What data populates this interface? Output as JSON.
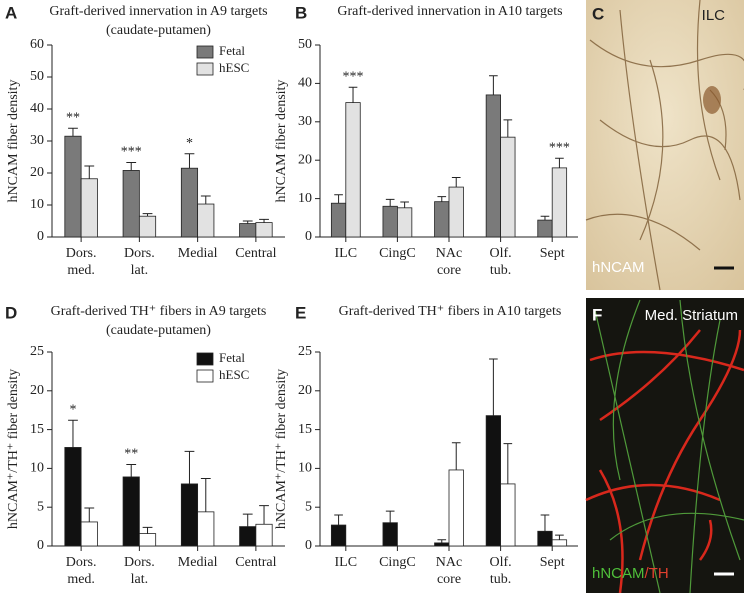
{
  "chart_data": [
    {
      "type": "bar",
      "panel": "A",
      "title": "Graft-derived innervation in A9 targets",
      "subtitle": "(caudate-putamen)",
      "y_label": "hNCAM fiber density",
      "categories": [
        "Dors.\nmed.",
        "Dors.\nlat.",
        "Medial",
        "Central"
      ],
      "series": [
        {
          "name": "Fetal",
          "color": "#7a7a7a",
          "values": [
            31.5,
            20.8,
            21.5,
            4.2
          ],
          "errors": [
            2.5,
            2.5,
            4.5,
            0.8
          ]
        },
        {
          "name": "hESC",
          "color": "#e2e2e2",
          "values": [
            18.2,
            6.5,
            10.3,
            4.5
          ],
          "errors": [
            4,
            0.8,
            2.5,
            1
          ]
        }
      ],
      "significance": [
        "**",
        "***",
        "*",
        null
      ],
      "ylim": [
        0,
        60
      ],
      "yticks": [
        0,
        10,
        20,
        30,
        40,
        50,
        60
      ],
      "grid": false,
      "legend": "upper right"
    },
    {
      "type": "bar",
      "panel": "B",
      "title": "Graft-derived innervation in A10 targets",
      "y_label": "hNCAM fiber density",
      "categories": [
        "ILC",
        "CingC",
        "NAc\ncore",
        "Olf.\ntub.",
        "Sept"
      ],
      "series": [
        {
          "name": "Fetal",
          "color": "#7a7a7a",
          "values": [
            8.8,
            8,
            9.2,
            37,
            4.4
          ],
          "errors": [
            2.2,
            1.8,
            1.3,
            5,
            1
          ]
        },
        {
          "name": "hESC",
          "color": "#e2e2e2",
          "values": [
            35,
            7.6,
            13,
            26,
            18
          ],
          "errors": [
            4,
            1.5,
            2.5,
            4.5,
            2.5
          ]
        }
      ],
      "significance": [
        "***",
        null,
        null,
        null,
        "***"
      ],
      "ylim": [
        0,
        50
      ],
      "yticks": [
        0,
        10,
        20,
        30,
        40,
        50
      ],
      "grid": false
    },
    {
      "type": "bar",
      "panel": "D",
      "title": "Graft-derived TH⁺ fibers in A9 targets",
      "subtitle": "(caudate-putamen)",
      "y_label": "hNCAM⁺/TH⁺ fiber density",
      "categories": [
        "Dors.\nmed.",
        "Dors.\nlat.",
        "Medial",
        "Central"
      ],
      "series": [
        {
          "name": "Fetal",
          "color": "#111111",
          "values": [
            12.7,
            8.9,
            8,
            2.5
          ],
          "errors": [
            3.5,
            1.6,
            4.2,
            1.6
          ]
        },
        {
          "name": "hESC",
          "color": "#ffffff",
          "values": [
            3.1,
            1.6,
            4.4,
            2.8
          ],
          "errors": [
            1.8,
            0.8,
            4.3,
            2.4
          ]
        }
      ],
      "significance": [
        "*",
        "**",
        null,
        null
      ],
      "ylim": [
        0,
        25
      ],
      "yticks": [
        0,
        5,
        10,
        15,
        20,
        25
      ],
      "grid": false,
      "legend": "upper right"
    },
    {
      "type": "bar",
      "panel": "E",
      "title": "Graft-derived TH⁺ fibers in A10 targets",
      "y_label": "hNCAM⁺/TH⁺ fiber density",
      "categories": [
        "ILC",
        "CingC",
        "NAc\ncore",
        "Olf.\ntub.",
        "Sept"
      ],
      "series": [
        {
          "name": "Fetal",
          "color": "#111111",
          "values": [
            2.7,
            3,
            0.4,
            16.8,
            1.9
          ],
          "errors": [
            1.3,
            1.5,
            0.4,
            7.3,
            2.1
          ]
        },
        {
          "name": "hESC",
          "color": "#ffffff",
          "values": [
            null,
            null,
            9.8,
            8,
            0.8
          ],
          "errors": [
            null,
            null,
            3.5,
            5.2,
            0.6
          ]
        }
      ],
      "ylim": [
        0,
        25
      ],
      "yticks": [
        0,
        5,
        10,
        15,
        20,
        25
      ],
      "grid": false
    }
  ],
  "images": [
    {
      "panel": "C",
      "region": "ILC",
      "stain": [
        "hNCAM"
      ]
    },
    {
      "panel": "F",
      "region": "Med. Striatum",
      "stain": [
        "hNCAM",
        "/TH"
      ]
    }
  ]
}
